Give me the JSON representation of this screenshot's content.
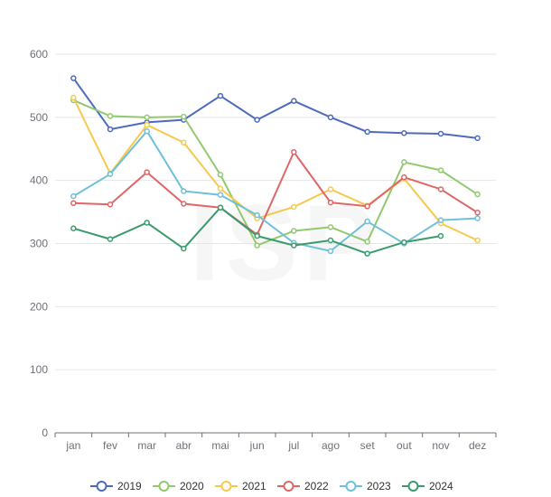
{
  "watermark": "ISP",
  "chart_data": {
    "type": "line",
    "title": "",
    "xlabel": "",
    "ylabel": "",
    "categories": [
      "jan",
      "fev",
      "mar",
      "abr",
      "mai",
      "jun",
      "jul",
      "ago",
      "set",
      "out",
      "nov",
      "dez"
    ],
    "yticks": [
      0,
      100,
      200,
      300,
      400,
      500,
      600
    ],
    "ylim": [
      0,
      600
    ],
    "grid": true,
    "legend_position": "bottom",
    "series": [
      {
        "name": "2019",
        "color": "#4d6bbd",
        "values": [
          562,
          481,
          492,
          496,
          534,
          496,
          526,
          500,
          477,
          475,
          474,
          467
        ]
      },
      {
        "name": "2020",
        "color": "#91c96e",
        "values": [
          527,
          502,
          500,
          501,
          409,
          297,
          320,
          326,
          303,
          429,
          416,
          378
        ]
      },
      {
        "name": "2021",
        "color": "#f6c94e",
        "values": [
          531,
          411,
          488,
          460,
          387,
          340,
          358,
          386,
          360,
          403,
          332,
          305
        ]
      },
      {
        "name": "2022",
        "color": "#e06666",
        "values": [
          364,
          362,
          413,
          363,
          357,
          314,
          445,
          365,
          359,
          405,
          386,
          349
        ]
      },
      {
        "name": "2023",
        "color": "#6ec1d8",
        "values": [
          375,
          410,
          478,
          383,
          377,
          345,
          301,
          288,
          335,
          300,
          337,
          340
        ]
      },
      {
        "name": "2024",
        "color": "#3b9b6d",
        "values": [
          324,
          307,
          333,
          292,
          357,
          312,
          297,
          305,
          284,
          302,
          312,
          null
        ]
      }
    ]
  }
}
